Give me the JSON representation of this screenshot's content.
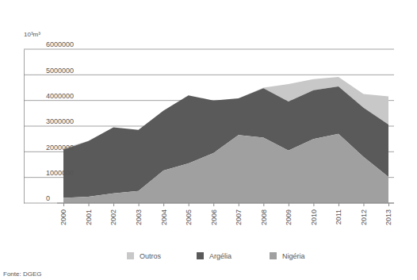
{
  "chart_data": {
    "type": "area",
    "stacked": true,
    "grid": true,
    "legend": "bottom",
    "y_label": "10³m³",
    "source": "Fonte: DGEG",
    "categories": [
      "2000",
      "2001",
      "2002",
      "2003",
      "2004",
      "2005",
      "2006",
      "2007",
      "2008",
      "2009",
      "2010",
      "2011",
      "2012",
      "2013"
    ],
    "series": [
      {
        "name": "Outros",
        "color": "#c8c8c8",
        "values": [
          60000,
          0,
          0,
          0,
          0,
          0,
          0,
          0,
          20000,
          680000,
          430000,
          370000,
          530000,
          1100000
        ]
      },
      {
        "name": "Argélia",
        "color": "#5a5a5a",
        "values": [
          1880000,
          2170000,
          2570000,
          2380000,
          2330000,
          2650000,
          2050000,
          1430000,
          1930000,
          1910000,
          1900000,
          1850000,
          1920000,
          2040000
        ]
      },
      {
        "name": "Nigéria",
        "color": "#a0a0a0",
        "values": [
          200000,
          250000,
          380000,
          470000,
          1270000,
          1550000,
          1950000,
          2650000,
          2550000,
          2050000,
          2500000,
          2700000,
          1800000,
          1020000
        ]
      }
    ],
    "ylim": [
      0,
      6000000
    ],
    "yticks": [
      0,
      1000000,
      2000000,
      3000000,
      4000000,
      5000000,
      6000000
    ]
  }
}
